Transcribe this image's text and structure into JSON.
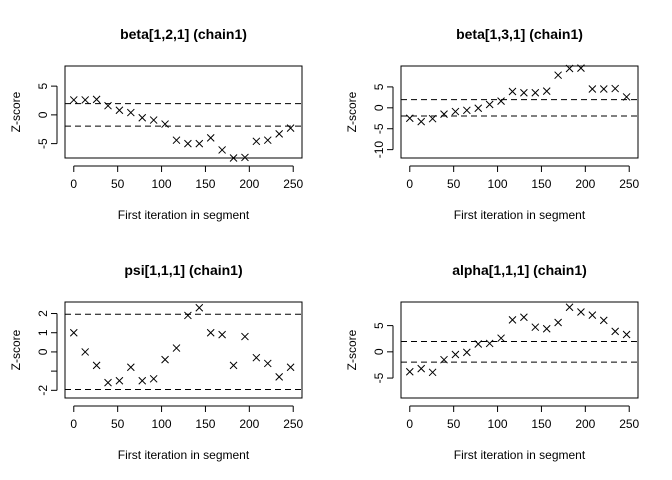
{
  "chart_data": [
    {
      "type": "scatter",
      "title": "beta[1,2,1] (chain1)",
      "xlabel": "First iteration in segment",
      "ylabel": "Z-score",
      "xlim": [
        0,
        250
      ],
      "ylim": [
        -7.5,
        8.5
      ],
      "xticks": [
        0,
        50,
        100,
        150,
        200,
        250
      ],
      "yticks": [
        -5,
        0,
        5
      ],
      "reference_lines": [
        -1.96,
        1.96
      ],
      "marker": "x",
      "x": [
        0,
        13,
        26,
        39,
        52,
        65,
        78,
        91,
        104,
        117,
        130,
        143,
        156,
        169,
        182,
        195,
        208,
        221,
        234,
        247
      ],
      "y": [
        2.6,
        2.6,
        2.7,
        1.6,
        0.8,
        0.4,
        -0.5,
        -0.9,
        -1.6,
        -4.4,
        -5.0,
        -5.0,
        -4.0,
        -6.1,
        -7.5,
        -7.4,
        -4.6,
        -4.4,
        -3.3,
        -2.3
      ]
    },
    {
      "type": "scatter",
      "title": "beta[1,3,1] (chain1)",
      "xlabel": "First iteration in segment",
      "ylabel": "Z-score",
      "xlim": [
        0,
        250
      ],
      "ylim": [
        -12,
        10
      ],
      "xticks": [
        0,
        50,
        100,
        150,
        200,
        250
      ],
      "yticks": [
        -10,
        -5,
        0,
        5
      ],
      "reference_lines": [
        -1.96,
        1.96
      ],
      "marker": "x",
      "x": [
        0,
        13,
        26,
        39,
        52,
        65,
        78,
        91,
        104,
        117,
        130,
        143,
        156,
        169,
        182,
        195,
        208,
        221,
        234,
        247
      ],
      "y": [
        -2.5,
        -3.3,
        -2.6,
        -1.5,
        -0.9,
        -0.6,
        -0.1,
        0.8,
        1.6,
        3.9,
        3.6,
        3.6,
        4.0,
        7.8,
        9.4,
        9.5,
        4.5,
        4.5,
        4.6,
        2.6
      ]
    },
    {
      "type": "scatter",
      "title": "psi[1,1,1] (chain1)",
      "xlabel": "First iteration in segment",
      "ylabel": "Z-score",
      "xlim": [
        0,
        250
      ],
      "ylim": [
        -2.4,
        2.6
      ],
      "xticks": [
        0,
        50,
        100,
        150,
        200,
        250
      ],
      "yticks": [
        -2,
        -1,
        0,
        1,
        2
      ],
      "ytick_labels": [
        "-2",
        "",
        "0",
        "1",
        "2"
      ],
      "reference_lines": [
        -1.96,
        1.96
      ],
      "marker": "x",
      "x": [
        0,
        13,
        26,
        39,
        52,
        65,
        78,
        91,
        104,
        117,
        130,
        143,
        156,
        169,
        182,
        195,
        208,
        221,
        234,
        247
      ],
      "y": [
        1.0,
        0.0,
        -0.7,
        -1.6,
        -1.5,
        -0.8,
        -1.5,
        -1.4,
        -0.4,
        0.2,
        1.9,
        2.3,
        1.0,
        0.9,
        -0.7,
        0.8,
        -0.3,
        -0.6,
        -1.3,
        -0.8
      ]
    },
    {
      "type": "scatter",
      "title": "alpha[1,1,1] (chain1)",
      "xlabel": "First iteration in segment",
      "ylabel": "Z-score",
      "xlim": [
        0,
        250
      ],
      "ylim": [
        -8.8,
        9.5
      ],
      "xticks": [
        0,
        50,
        100,
        150,
        200,
        250
      ],
      "yticks": [
        -5,
        0,
        5
      ],
      "reference_lines": [
        -1.96,
        1.96
      ],
      "marker": "x",
      "x": [
        0,
        13,
        26,
        39,
        52,
        65,
        78,
        91,
        104,
        117,
        130,
        143,
        156,
        169,
        182,
        195,
        208,
        221,
        234,
        247
      ],
      "y": [
        -3.8,
        -3.2,
        -3.9,
        -1.5,
        -0.5,
        -0.1,
        1.5,
        1.6,
        2.6,
        6.1,
        6.6,
        4.7,
        4.4,
        5.6,
        8.5,
        7.6,
        7.0,
        6.0,
        3.9,
        3.3
      ]
    }
  ]
}
